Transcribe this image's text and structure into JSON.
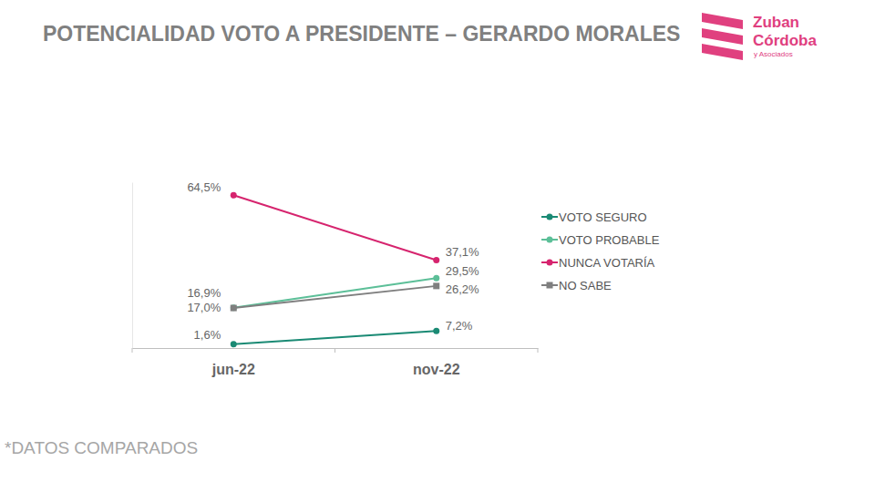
{
  "chart_data": {
    "type": "line",
    "title": "POTENCIALIDAD VOTO A PRESIDENTE – GERARDO MORALES",
    "categories": [
      "jun-22",
      "nov-22"
    ],
    "series": [
      {
        "name": "VOTO SEGURO",
        "color": "#1a8a74",
        "marker": "circle",
        "values": [
          1.6,
          7.2
        ],
        "value_labels": [
          "1,6%",
          "7,2%"
        ]
      },
      {
        "name": "VOTO PROBABLE",
        "color": "#5cbf98",
        "marker": "circle",
        "values": [
          17.0,
          29.5
        ],
        "value_labels": [
          "17,0%",
          "29,5%"
        ]
      },
      {
        "name": "NUNCA VOTARÍA",
        "color": "#d6246e",
        "marker": "circle",
        "values": [
          64.5,
          37.1
        ],
        "value_labels": [
          "64,5%",
          "37,1%"
        ]
      },
      {
        "name": "NO SABE",
        "color": "#7f7f7f",
        "marker": "square",
        "values": [
          16.9,
          26.2
        ],
        "value_labels": [
          "16,9%",
          "26,2%"
        ]
      }
    ],
    "ylim": [
      0,
      70
    ],
    "tick_labels": "x",
    "data_labels": true,
    "legend": "right",
    "grid": false,
    "annotations": [
      "*DATOS COMPARADOS"
    ]
  },
  "logo": {
    "lines": [
      "Zuban",
      "Córdoba",
      "y Asociados"
    ]
  }
}
